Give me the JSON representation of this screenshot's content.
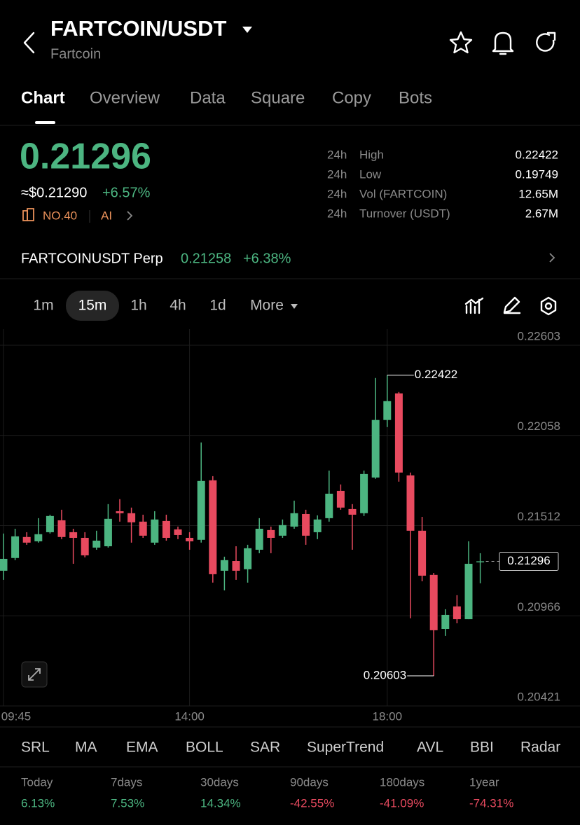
{
  "header": {
    "title": "FARTCOIN/USDT",
    "subtitle": "Fartcoin"
  },
  "tabs": [
    "Chart",
    "Overview",
    "Data",
    "Square",
    "Copy",
    "Bots"
  ],
  "price": {
    "last": "0.21296",
    "usd": "≈$0.21290",
    "change": "+6.57%",
    "rank": "NO.40",
    "ai": "AI"
  },
  "stats": [
    {
      "period": "24h",
      "label": "High",
      "value": "0.22422"
    },
    {
      "period": "24h",
      "label": "Low",
      "value": "0.19749"
    },
    {
      "period": "24h",
      "label": "Vol (FARTCOIN)",
      "value": "12.65M"
    },
    {
      "period": "24h",
      "label": "Turnover (USDT)",
      "value": "2.67M"
    }
  ],
  "perp": {
    "name": "FARTCOINUSDT Perp",
    "price": "0.21258",
    "change": "+6.38%"
  },
  "intervals": [
    "1m",
    "15m",
    "1h",
    "4h",
    "1d",
    "More"
  ],
  "chart_data": {
    "type": "candlestick",
    "categories": [
      "09:45",
      null,
      null,
      null,
      null,
      null,
      null,
      null,
      null,
      null,
      null,
      null,
      null,
      null,
      null,
      null,
      "14:00",
      null,
      null,
      null,
      null,
      null,
      null,
      null,
      null,
      null,
      null,
      null,
      null,
      null,
      null,
      null,
      null,
      "18:00",
      null,
      null,
      null,
      null,
      null,
      null,
      null,
      null
    ],
    "open": [
      0.21239,
      0.21316,
      0.21443,
      0.21417,
      0.21472,
      0.21544,
      0.21472,
      0.21438,
      0.21379,
      0.21387,
      0.21599,
      0.21587,
      0.21536,
      0.21409,
      0.2154,
      0.21489,
      0.21438,
      0.21426,
      0.21786,
      0.21239,
      0.21298,
      0.21248,
      0.21366,
      0.21485,
      0.21451,
      0.21506,
      0.21582,
      0.21472,
      0.21557,
      0.21722,
      0.21612,
      0.21587,
      0.21803,
      0.22151,
      0.22312,
      0.21816,
      0.21481,
      0.21214,
      0.20887,
      0.21023,
      0.20946,
      0.2129
    ],
    "high": [
      0.21464,
      0.21493,
      0.21472,
      0.21557,
      0.21578,
      0.21608,
      0.21493,
      0.21472,
      0.21481,
      0.21642,
      0.21672,
      0.21621,
      0.21578,
      0.21599,
      0.21578,
      0.21506,
      0.21472,
      0.22015,
      0.21811,
      0.21324,
      0.21387,
      0.21396,
      0.21557,
      0.21506,
      0.21549,
      0.21663,
      0.21608,
      0.21574,
      0.21845,
      0.21761,
      0.21642,
      0.21845,
      0.22405,
      0.22422,
      0.2232,
      0.21833,
      0.21565,
      0.21226,
      0.21006,
      0.21091,
      0.21417,
      0.21345
    ],
    "low": [
      0.21184,
      0.21303,
      0.21396,
      0.21409,
      0.21464,
      0.2143,
      0.21281,
      0.2132,
      0.21366,
      0.21379,
      0.21536,
      0.21409,
      0.21438,
      0.21396,
      0.21421,
      0.2143,
      0.21366,
      0.21409,
      0.21167,
      0.2112,
      0.21184,
      0.21167,
      0.21345,
      0.21345,
      0.21438,
      0.21493,
      0.21396,
      0.2143,
      0.21536,
      0.21608,
      0.21366,
      0.2157,
      0.21795,
      0.22108,
      0.21778,
      0.20951,
      0.21175,
      0.20603,
      0.20845,
      0.20921,
      0.20946,
      0.21163
    ],
    "close": [
      0.21311,
      0.21447,
      0.21409,
      0.2146,
      0.2157,
      0.21443,
      0.21438,
      0.21332,
      0.21421,
      0.21553,
      0.21587,
      0.21532,
      0.21451,
      0.21549,
      0.21438,
      0.21455,
      0.21417,
      0.21782,
      0.21218,
      0.21303,
      0.21239,
      0.21375,
      0.21493,
      0.21438,
      0.21515,
      0.21587,
      0.21451,
      0.21549,
      0.21705,
      0.21621,
      0.21578,
      0.21824,
      0.22151,
      0.22265,
      0.21833,
      0.21481,
      0.21209,
      0.20879,
      0.20972,
      0.20946,
      0.21281,
      0.21296
    ],
    "up_color": "#4cb581",
    "down_color": "#e84a5f",
    "ylim": [
      0.20421,
      0.22603
    ],
    "yticks": [
      0.20421,
      0.20966,
      0.21512,
      0.22058,
      0.22603
    ],
    "grid": true
  },
  "indicators": [
    "SRL",
    "MA",
    "EMA",
    "BOLL",
    "SAR",
    "SuperTrend",
    "AVL",
    "BBI",
    "Radar"
  ],
  "performance": [
    {
      "period": "Today",
      "value": "6.13%"
    },
    {
      "period": "7days",
      "value": "7.53%"
    },
    {
      "period": "30days",
      "value": "14.34%"
    },
    {
      "period": "90days",
      "value": "-42.55%"
    },
    {
      "period": "180days",
      "value": "-41.09%"
    },
    {
      "period": "1year",
      "value": "-74.31%"
    }
  ]
}
